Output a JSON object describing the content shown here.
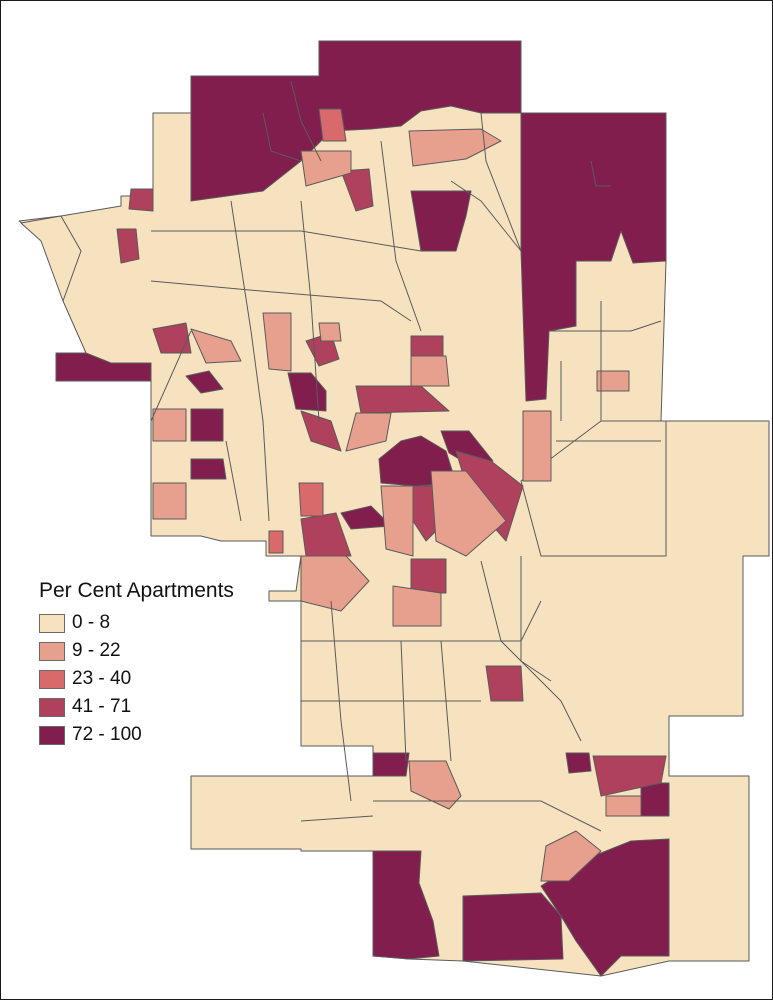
{
  "legend": {
    "title": "Per Cent Apartments",
    "classes": [
      {
        "label": "0 - 8",
        "color": "#f7e2c0"
      },
      {
        "label": "9 - 22",
        "color": "#e8a08e"
      },
      {
        "label": "23 - 40",
        "color": "#d96a6c"
      },
      {
        "label": "41 - 71",
        "color": "#b0415c"
      },
      {
        "label": "72 - 100",
        "color": "#821e4e"
      }
    ]
  }
}
